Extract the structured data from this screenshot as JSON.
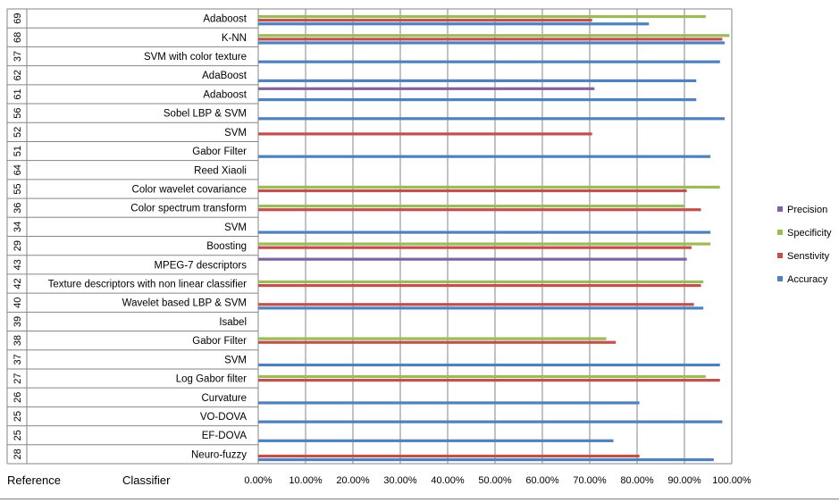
{
  "chart_data": {
    "type": "bar",
    "orientation": "horizontal",
    "title": "",
    "xlabel": "",
    "ylabel": "",
    "xlim": [
      0,
      1
    ],
    "x_ticks": [
      "0.00%",
      "10.00%",
      "20.00%",
      "30.00%",
      "40.00%",
      "50.00%",
      "60.00%",
      "70.00%",
      "80.00%",
      "90.00%",
      "100.00%"
    ],
    "grid": true,
    "legend_position": "right",
    "category_headers": {
      "reference": "Reference",
      "classifier": "Classifier"
    },
    "rows": [
      {
        "reference": "69",
        "classifier": "Adaboost"
      },
      {
        "reference": "68",
        "classifier": "K-NN"
      },
      {
        "reference": "37",
        "classifier": "SVM with color texture"
      },
      {
        "reference": "62",
        "classifier": "AdaBoost"
      },
      {
        "reference": "61",
        "classifier": "Adaboost"
      },
      {
        "reference": "56",
        "classifier": "Sobel LBP & SVM"
      },
      {
        "reference": "52",
        "classifier": "SVM"
      },
      {
        "reference": "51",
        "classifier": "Gabor Filter"
      },
      {
        "reference": "64",
        "classifier": "Reed Xiaoli"
      },
      {
        "reference": "55",
        "classifier": "Color wavelet covariance"
      },
      {
        "reference": "36",
        "classifier": "Color spectrum transform"
      },
      {
        "reference": "34",
        "classifier": "SVM"
      },
      {
        "reference": "29",
        "classifier": "Boosting"
      },
      {
        "reference": "43",
        "classifier": "MPEG-7 descriptors"
      },
      {
        "reference": "42",
        "classifier": "Texture descriptors with non linear classifier"
      },
      {
        "reference": "40",
        "classifier": "Wavelet based LBP & SVM"
      },
      {
        "reference": "39",
        "classifier": "Isabel"
      },
      {
        "reference": "38",
        "classifier": "Gabor Filter"
      },
      {
        "reference": "37",
        "classifier": "SVM"
      },
      {
        "reference": "27",
        "classifier": "Log Gabor filter"
      },
      {
        "reference": "26",
        "classifier": "Curvature"
      },
      {
        "reference": "25",
        "classifier": "VO-DOVA"
      },
      {
        "reference": "25",
        "classifier": "EF-DOVA"
      },
      {
        "reference": "28",
        "classifier": "Neuro-fuzzy"
      }
    ],
    "series": [
      {
        "name": "Accuracy",
        "color": "#4f81bd",
        "values": [
          0.825,
          0.985,
          0.975,
          0.925,
          0.925,
          0.985,
          null,
          0.955,
          null,
          null,
          null,
          0.955,
          null,
          null,
          null,
          0.94,
          null,
          null,
          0.975,
          null,
          0.805,
          0.98,
          0.75,
          0.962
        ]
      },
      {
        "name": "Senstivity",
        "color": "#c0504d",
        "values": [
          0.705,
          0.98,
          null,
          null,
          null,
          null,
          0.705,
          null,
          null,
          0.905,
          0.935,
          null,
          0.915,
          null,
          0.935,
          0.92,
          null,
          0.755,
          null,
          0.975,
          null,
          null,
          null,
          0.805
        ]
      },
      {
        "name": "Specificity",
        "color": "#9bbb59",
        "values": [
          0.945,
          0.995,
          null,
          null,
          null,
          null,
          null,
          null,
          null,
          0.975,
          0.9,
          null,
          0.955,
          null,
          0.94,
          null,
          null,
          0.735,
          null,
          0.945,
          null,
          null,
          null,
          null
        ]
      },
      {
        "name": "Precision",
        "color": "#8064a2",
        "values": [
          null,
          null,
          null,
          null,
          0.71,
          null,
          null,
          null,
          null,
          null,
          null,
          null,
          null,
          0.905,
          null,
          null,
          null,
          null,
          null,
          null,
          null,
          null,
          null,
          null
        ]
      }
    ]
  }
}
